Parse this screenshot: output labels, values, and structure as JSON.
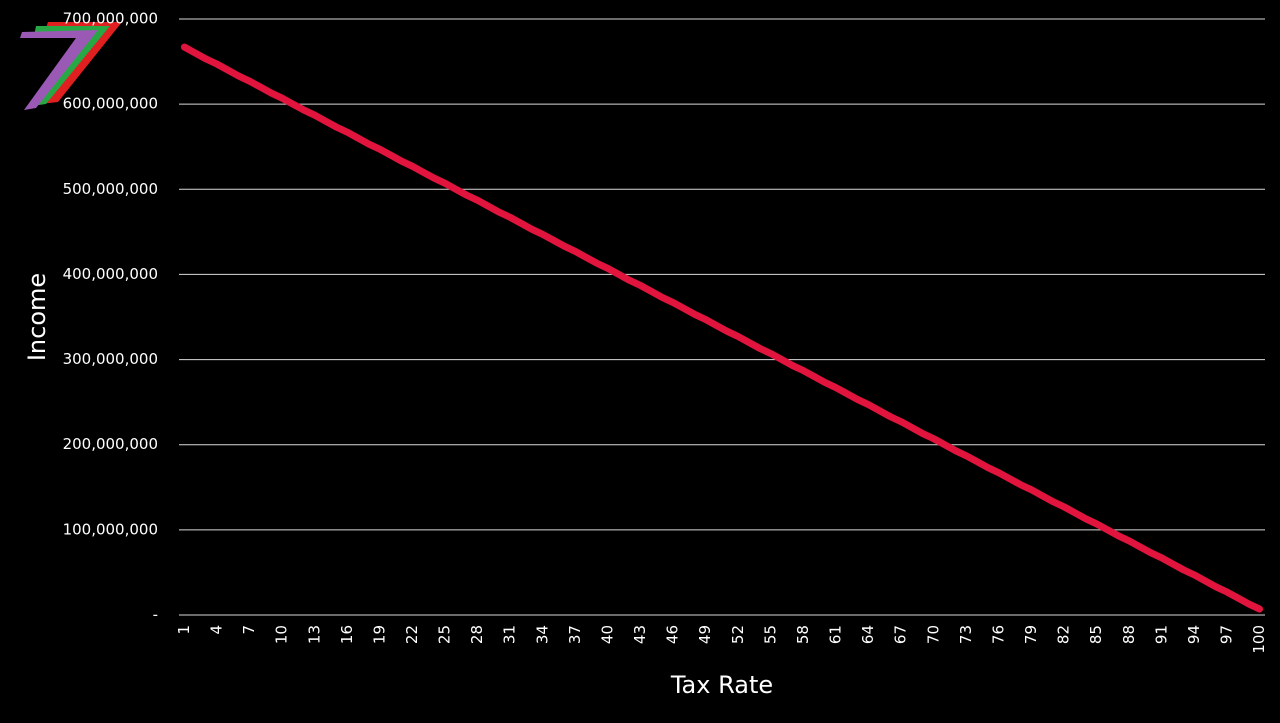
{
  "chart_data": {
    "type": "line",
    "x_label": "Tax Rate",
    "y_label": "Income",
    "categories": [
      "1",
      null,
      null,
      "4",
      null,
      null,
      "7",
      null,
      null,
      "10",
      null,
      null,
      "13",
      null,
      null,
      "16",
      null,
      null,
      "19",
      null,
      null,
      "22",
      null,
      null,
      "25",
      null,
      null,
      "28",
      null,
      null,
      "31",
      null,
      null,
      "34",
      null,
      null,
      "37",
      null,
      null,
      "40",
      null,
      null,
      "43",
      null,
      null,
      "46",
      null,
      null,
      "49",
      null,
      null,
      "52",
      null,
      null,
      "55",
      null,
      null,
      "58",
      null,
      null,
      "61",
      null,
      null,
      "64",
      null,
      null,
      "67",
      null,
      null,
      "70",
      null,
      null,
      "73",
      null,
      null,
      "76",
      null,
      null,
      "79",
      null,
      null,
      "82",
      null,
      null,
      "85",
      null,
      null,
      "88",
      null,
      null,
      "91",
      null,
      null,
      "94",
      null,
      null,
      "97",
      null,
      null,
      "100"
    ],
    "series": [
      {
        "name": "Income",
        "color": "#e0143c",
        "values": [
          667000000,
          660000000,
          653000000,
          647000000,
          640000000,
          633000000,
          627000000,
          620000000,
          613000000,
          607000000,
          600000000,
          593000000,
          587000000,
          580000000,
          573000000,
          567000000,
          560000000,
          553000000,
          547000000,
          540000000,
          533000000,
          527000000,
          520000000,
          513000000,
          507000000,
          500000000,
          493000000,
          487000000,
          480000000,
          473000000,
          467000000,
          460000000,
          453000000,
          447000000,
          440000000,
          433000000,
          427000000,
          420000000,
          413000000,
          407000000,
          400000000,
          393000000,
          387000000,
          380000000,
          373000000,
          367000000,
          360000000,
          353000000,
          347000000,
          340000000,
          333000000,
          327000000,
          320000000,
          313000000,
          307000000,
          300000000,
          293000000,
          287000000,
          280000000,
          273000000,
          267000000,
          260000000,
          253000000,
          247000000,
          240000000,
          233000000,
          227000000,
          220000000,
          213000000,
          207000000,
          200000000,
          193000000,
          187000000,
          180000000,
          173000000,
          167000000,
          160000000,
          153000000,
          147000000,
          140000000,
          133000000,
          127000000,
          120000000,
          113000000,
          107000000,
          100000000,
          93000000,
          87000000,
          80000000,
          73000000,
          67000000,
          60000000,
          53000000,
          47000000,
          40000000,
          33000000,
          27000000,
          20000000,
          13000000,
          7000000
        ]
      }
    ],
    "ylim": [
      0,
      700000000
    ],
    "yticks": [
      {
        "value": 0,
        "label": "-"
      },
      {
        "value": 100000000,
        "label": "100,000,000"
      },
      {
        "value": 200000000,
        "label": "200,000,000"
      },
      {
        "value": 300000000,
        "label": "300,000,000"
      },
      {
        "value": 400000000,
        "label": "400,000,000"
      },
      {
        "value": 500000000,
        "label": "500,000,000"
      },
      {
        "value": 600000000,
        "label": "600,000,000"
      },
      {
        "value": 700000000,
        "label": "700,000,000"
      }
    ],
    "grid": true
  }
}
